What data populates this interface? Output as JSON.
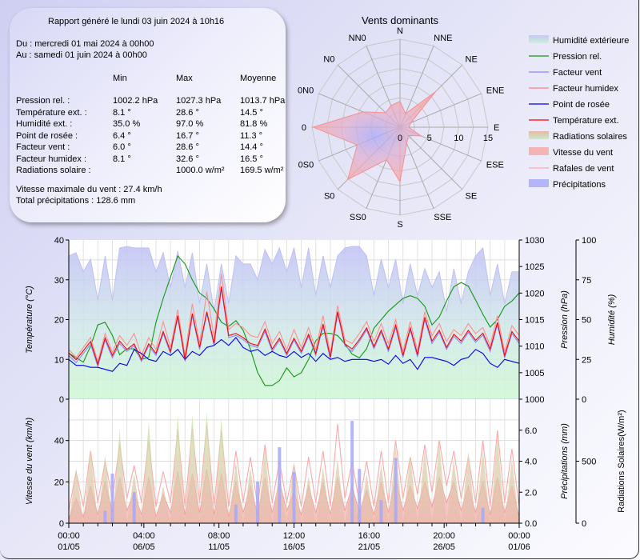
{
  "report": {
    "title": "Rapport généré le lundi 03 juin 2024 à 10h16",
    "from": "Du : mercredi 01 mai 2024 à 00h00",
    "to": "Au : samedi 01 juin 2024 à 00h00",
    "columns": [
      "Min",
      "Max",
      "Moyenne"
    ],
    "rows": [
      {
        "label": "Pression rel. :",
        "min": "1002.2 hPa",
        "max": "1027.3 hPa",
        "avg": "1013.7 hPa"
      },
      {
        "label": "Température ext. :",
        "min": "8.1 °",
        "max": "28.6 °",
        "avg": "14.5 °"
      },
      {
        "label": "Humidité ext. :",
        "min": "35.0 %",
        "max": "97.0 %",
        "avg": "81.8 %"
      },
      {
        "label": "Point de rosée :",
        "min": "6.4 °",
        "max": "16.7 °",
        "avg": "11.3 °"
      },
      {
        "label": "Facteur vent :",
        "min": "6.0 °",
        "max": "28.6 °",
        "avg": "14.4 °"
      },
      {
        "label": "Facteur humidex :",
        "min": "8.1 °",
        "max": "32.6 °",
        "avg": "16.5 °"
      },
      {
        "label": "Radiations solaire :",
        "min": "",
        "max": "1000.0 w/m²",
        "avg": "169.5 w/m²"
      }
    ],
    "max_wind": "Vitesse maximale du vent : 27.4 km/h",
    "total_rain": "Total précipitations : 128.6 mm"
  },
  "legend": [
    {
      "label": "Humidité extérieure",
      "kind": "area",
      "color": "#c8c8f4",
      "color2": "#c8f0d8"
    },
    {
      "label": "Pression rel.",
      "kind": "line",
      "color": "#119911"
    },
    {
      "label": "Facteur vent",
      "kind": "line",
      "color": "#8888ff"
    },
    {
      "label": "Facteur humidex",
      "kind": "line",
      "color": "#ff8080"
    },
    {
      "label": "Point de rosée",
      "kind": "line",
      "color": "#0000ee"
    },
    {
      "label": "Température ext.",
      "kind": "line",
      "color": "#ff0000"
    },
    {
      "label": "Radiations solaires",
      "kind": "area",
      "color": "#e8b8a8",
      "color2": "#c8ecc0"
    },
    {
      "label": "Vitesse du vent",
      "kind": "area",
      "color": "#f4b4b4",
      "color2": "#f4b4b4"
    },
    {
      "label": "Rafales de vent",
      "kind": "line",
      "color": "#ffaaaa"
    },
    {
      "label": "Précipitations",
      "kind": "area",
      "color": "#b4b4f8",
      "color2": "#b4b4f8"
    }
  ],
  "chart_data": [
    {
      "type": "radar",
      "title": "Vents dominants",
      "directions": [
        "N",
        "NNE",
        "NE",
        "ENE",
        "E",
        "ESE",
        "SE",
        "SSE",
        "S",
        "SS0",
        "S0",
        "0S0",
        "0",
        "0N0",
        "N0",
        "NN0"
      ],
      "values": [
        4.4,
        2.5,
        8.6,
        2.0,
        1.5,
        3.9,
        2.0,
        3.0,
        9.3,
        6.0,
        12.6,
        7.9,
        14.8,
        6.8,
        3.5,
        4.0
      ],
      "rlim": [
        0,
        15
      ],
      "r_ticks": [
        "0",
        "5",
        "10",
        "15"
      ],
      "color": "#f4a0a8"
    },
    {
      "type": "line",
      "panel": "top",
      "ylabel": "Température (°C)",
      "ylim": [
        0,
        40
      ],
      "y_ticks": [
        "0",
        "10",
        "20",
        "30",
        "40"
      ],
      "y2label": "Pression (hPa)",
      "y2lim": [
        1000,
        1030
      ],
      "y2_ticks": [
        "1000",
        "1005",
        "1010",
        "1015",
        "1020",
        "1025",
        "1030"
      ],
      "y3label": "Humidité (%)",
      "y3lim": [
        0,
        100
      ],
      "y3_ticks": [
        "0",
        "25",
        "50",
        "75",
        "100"
      ],
      "grid": true,
      "x": [
        "01/05 00:00",
        "01/05 12:00",
        "02/05 00:00",
        "02/05 12:00",
        "03/05 00:00",
        "03/05 12:00",
        "04/05 00:00",
        "04/05 12:00",
        "05/05 00:00",
        "05/05 12:00",
        "06/05 00:00",
        "06/05 12:00",
        "07/05 00:00",
        "07/05 12:00",
        "08/05 00:00",
        "08/05 12:00",
        "09/05 00:00",
        "09/05 12:00",
        "10/05 00:00",
        "10/05 12:00",
        "11/05 00:00",
        "11/05 12:00",
        "12/05 00:00",
        "12/05 12:00",
        "13/05 00:00",
        "13/05 12:00",
        "14/05 00:00",
        "14/05 12:00",
        "15/05 00:00",
        "15/05 12:00",
        "16/05 00:00",
        "16/05 12:00",
        "17/05 00:00",
        "17/05 12:00",
        "18/05 00:00",
        "18/05 12:00",
        "19/05 00:00",
        "19/05 12:00",
        "20/05 00:00",
        "20/05 12:00",
        "21/05 00:00",
        "21/05 12:00",
        "22/05 00:00",
        "22/05 12:00",
        "23/05 00:00",
        "23/05 12:00",
        "24/05 00:00",
        "24/05 12:00",
        "25/05 00:00",
        "25/05 12:00",
        "26/05 00:00",
        "26/05 12:00",
        "27/05 00:00",
        "27/05 12:00",
        "28/05 00:00",
        "28/05 12:00",
        "29/05 00:00",
        "29/05 12:00",
        "30/05 00:00",
        "30/05 12:00",
        "31/05 00:00",
        "31/05 12:00",
        "01/06 00:00"
      ],
      "series": [
        {
          "name": "Humidité extérieure",
          "axis": "y3",
          "kind": "area",
          "values": [
            90,
            92,
            80,
            88,
            62,
            90,
            62,
            95,
            96,
            95,
            95,
            95,
            80,
            92,
            70,
            93,
            70,
            92,
            60,
            85,
            55,
            85,
            60,
            90,
            85,
            85,
            75,
            94,
            85,
            95,
            80,
            95,
            70,
            95,
            65,
            90,
            70,
            90,
            95,
            96,
            96,
            90,
            65,
            88,
            70,
            88,
            60,
            85,
            65,
            82,
            70,
            80,
            55,
            82,
            60,
            80,
            90,
            95,
            65,
            85,
            60,
            80,
            80
          ]
        },
        {
          "name": "Pression rel.",
          "axis": "y2",
          "kind": "line",
          "values": [
            1008.7,
            1007.8,
            1007.0,
            1010,
            1014,
            1014.5,
            1012,
            1008.4,
            1009.5,
            1009.5,
            1007.5,
            1007.9,
            1014.5,
            1019,
            1023,
            1027,
            1025.5,
            1022.5,
            1020,
            1019,
            1017,
            1014.5,
            1013.7,
            1014.8,
            1013,
            1009.4,
            1005,
            1002.6,
            1002.6,
            1003.5,
            1005.9,
            1004.2,
            1005,
            1007.5,
            1011,
            1012.4,
            1012.4,
            1012,
            1010.4,
            1008.5,
            1007.8,
            1009.5,
            1013.4,
            1015,
            1016.6,
            1017.8,
            1019,
            1019.5,
            1019,
            1017.5,
            1014,
            1015.5,
            1018.5,
            1021.2,
            1022,
            1021.3,
            1018.7,
            1016,
            1013.6,
            1015,
            1017.5,
            1018.5,
            1020
          ]
        },
        {
          "name": "Facteur vent",
          "axis": "y",
          "kind": "line",
          "values": [
            11,
            9.2,
            11.5,
            13.8,
            8.2,
            14.8,
            10.4,
            14,
            12,
            13.4,
            9.5,
            13.4,
            11,
            16.5,
            11.5,
            20.5,
            9.5,
            21,
            12.5,
            21.5,
            13.5,
            27.8,
            15.5,
            16,
            15,
            13.5,
            13,
            17,
            12,
            14.8,
            11,
            14.8,
            11.5,
            15.8,
            11,
            18.4,
            10,
            21.5,
            13.4,
            12,
            14.5,
            17.4,
            12.7,
            16.8,
            12,
            18,
            10.5,
            17.4,
            10.6,
            20,
            14,
            16.8,
            12.5,
            15.8,
            14,
            16.8,
            14.3,
            16.1,
            12,
            18.8,
            10.4,
            16.5,
            14
          ]
        },
        {
          "name": "Facteur humidex",
          "axis": "y",
          "kind": "line",
          "values": [
            12.5,
            10.5,
            13,
            15.5,
            9.5,
            16.5,
            11.8,
            16,
            13.5,
            16.5,
            11,
            15.5,
            12.5,
            19.5,
            13,
            22.5,
            11,
            24,
            14,
            27,
            15.5,
            31.5,
            17.5,
            19,
            18,
            16,
            15.5,
            19.5,
            14,
            17,
            12.5,
            17.5,
            13,
            18,
            12.5,
            21,
            11.5,
            23.5,
            15,
            14,
            16.5,
            19.5,
            14.5,
            19,
            14,
            20,
            12,
            19.5,
            12.2,
            22,
            16,
            19,
            14.5,
            17.5,
            16,
            19,
            16.5,
            18,
            13.5,
            21,
            12,
            18.5,
            16
          ]
        },
        {
          "name": "Point de rosée",
          "axis": "y",
          "kind": "line",
          "values": [
            10,
            8.5,
            8.5,
            8,
            8,
            7.5,
            7,
            9,
            8.5,
            12.5,
            11.5,
            10,
            9.5,
            12,
            11,
            12.5,
            10,
            12,
            11,
            13,
            13.5,
            15,
            13.5,
            15.5,
            13,
            12,
            12.5,
            11,
            12,
            11,
            10.5,
            12,
            10.5,
            11.5,
            9.5,
            11.5,
            10,
            10.5,
            9.5,
            10,
            10,
            10,
            9.5,
            10,
            8.8,
            11,
            9,
            10,
            7.5,
            10.5,
            10.5,
            10,
            9.5,
            8.5,
            10,
            10.5,
            12.5,
            11.5,
            9,
            8,
            10,
            9.5,
            9
          ]
        },
        {
          "name": "Température ext.",
          "axis": "y",
          "kind": "line",
          "values": [
            11.6,
            9.9,
            12.2,
            14.5,
            8.8,
            15.4,
            11,
            14.6,
            12.5,
            13.9,
            10,
            13.9,
            11.5,
            17,
            12,
            21,
            10,
            21.5,
            13,
            22,
            14,
            28.3,
            16,
            16.5,
            15.5,
            14,
            13.5,
            17.6,
            12.6,
            15.3,
            11.5,
            15.3,
            12,
            16.3,
            11.5,
            18.9,
            10.6,
            22,
            13.9,
            12.6,
            15,
            17.9,
            13.2,
            17.3,
            12.6,
            18.6,
            11,
            17.9,
            11.2,
            20.6,
            14.6,
            17.3,
            13,
            16.3,
            14.6,
            17.3,
            14.8,
            16.6,
            12.6,
            19.3,
            11,
            17,
            14.6
          ]
        }
      ]
    },
    {
      "type": "area",
      "panel": "bottom",
      "ylabel": "Vitesse du vent (km/h)",
      "ylim": [
        0,
        60
      ],
      "y_ticks": [
        "0",
        "20",
        "40"
      ],
      "y2label": "Précipitations (mm)",
      "y2lim": [
        0,
        8
      ],
      "y2_ticks": [
        "0.0",
        "2.0",
        "4.0",
        "6.0"
      ],
      "y3label": "Radiations Solaires(W/m²)",
      "y3lim": [
        0,
        1000
      ],
      "y3_ticks": [
        "0",
        "500"
      ],
      "grid": true,
      "x_tick_labels": [
        {
          "time": "00:00",
          "date": "01/05"
        },
        {
          "time": "04:00",
          "date": "06/05"
        },
        {
          "time": "08:00",
          "date": "11/05"
        },
        {
          "time": "12:00",
          "date": "16/05"
        },
        {
          "time": "16:00",
          "date": "21/05"
        },
        {
          "time": "20:00",
          "date": "26/05"
        },
        {
          "time": "00:00",
          "date": "01/06"
        }
      ],
      "series": [
        {
          "name": "Rafales de vent",
          "axis": "y",
          "kind": "line",
          "values": [
            6,
            25,
            8,
            35,
            10,
            30,
            12,
            38,
            12,
            28,
            10,
            40,
            8,
            25,
            10,
            45,
            8,
            46,
            10,
            48,
            8,
            45,
            8,
            35,
            10,
            32,
            8,
            38,
            10,
            30,
            10,
            28,
            8,
            32,
            10,
            35,
            8,
            48,
            12,
            30,
            10,
            30,
            8,
            35,
            10,
            40,
            12,
            32,
            14,
            38,
            15,
            40,
            18,
            35,
            12,
            32,
            10,
            40,
            8,
            45,
            10,
            36,
            8
          ]
        },
        {
          "name": "Vitesse du vent",
          "axis": "y",
          "kind": "area",
          "values": [
            2,
            12,
            3,
            18,
            4,
            20,
            5,
            22,
            6,
            15,
            4,
            22,
            3,
            14,
            5,
            25,
            4,
            24,
            5,
            26,
            4,
            24,
            3,
            20,
            5,
            18,
            4,
            22,
            5,
            20,
            6,
            15,
            4,
            18,
            5,
            20,
            4,
            22,
            6,
            18,
            5,
            16,
            4,
            20,
            5,
            22,
            6,
            18,
            7,
            20,
            8,
            22,
            10,
            20,
            6,
            18,
            5,
            20,
            4,
            22,
            5,
            18,
            3
          ]
        },
        {
          "name": "Radiations solaires",
          "axis": "y3",
          "kind": "area",
          "values": [
            0,
            450,
            0,
            600,
            0,
            550,
            0,
            750,
            0,
            400,
            0,
            820,
            0,
            300,
            0,
            870,
            0,
            880,
            0,
            900,
            0,
            850,
            0,
            500,
            0,
            450,
            0,
            600,
            0,
            420,
            0,
            500,
            0,
            380,
            0,
            450,
            0,
            520,
            0,
            350,
            0,
            400,
            0,
            480,
            0,
            620,
            0,
            550,
            0,
            600,
            0,
            650,
            0,
            520,
            0,
            580,
            0,
            600,
            0,
            720,
            0,
            520,
            0
          ]
        },
        {
          "name": "Précipitations",
          "axis": "y2",
          "kind": "bar",
          "values": [
            0,
            0,
            0,
            0,
            0,
            0.8,
            3.2,
            0,
            0,
            2.0,
            0,
            0,
            0,
            0,
            0,
            0,
            0,
            0,
            0,
            0,
            0,
            0,
            0,
            1.2,
            0,
            0,
            2.7,
            0,
            0,
            4.9,
            0,
            3.3,
            0,
            0,
            0,
            0,
            0,
            0,
            0,
            6.6,
            3.5,
            0,
            0,
            1.5,
            0,
            4.2,
            0,
            0,
            0,
            0,
            0,
            0,
            0,
            0,
            0,
            0,
            0,
            1.0,
            0,
            0,
            0,
            0,
            0
          ]
        }
      ]
    }
  ]
}
